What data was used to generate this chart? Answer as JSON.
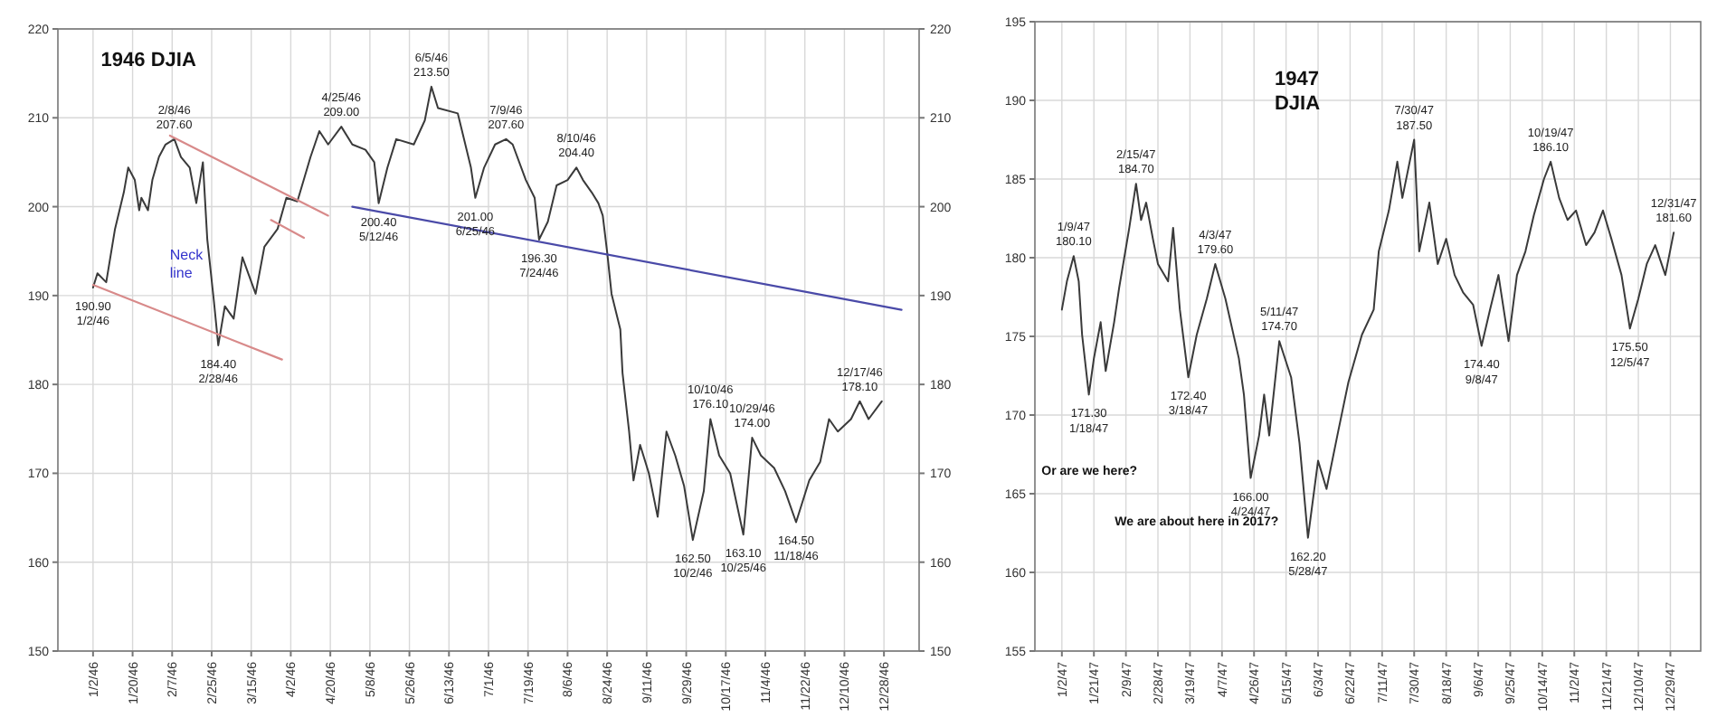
{
  "chart_data": [
    {
      "type": "line",
      "title": "1946 DJIA",
      "grid": true,
      "xlim": [
        "1945-12-17",
        "1947-01-13"
      ],
      "xticks": [
        {
          "value": "1946-01-02",
          "label": "1/2/46"
        },
        {
          "value": "1946-01-20",
          "label": "1/20/46"
        },
        {
          "value": "1946-02-07",
          "label": "2/7/46"
        },
        {
          "value": "1946-02-25",
          "label": "2/25/46"
        },
        {
          "value": "1946-03-15",
          "label": "3/15/46"
        },
        {
          "value": "1946-04-02",
          "label": "4/2/46"
        },
        {
          "value": "1946-04-20",
          "label": "4/20/46"
        },
        {
          "value": "1946-05-08",
          "label": "5/8/46"
        },
        {
          "value": "1946-05-26",
          "label": "5/26/46"
        },
        {
          "value": "1946-06-13",
          "label": "6/13/46"
        },
        {
          "value": "1946-07-01",
          "label": "7/1/46"
        },
        {
          "value": "1946-07-19",
          "label": "7/19/46"
        },
        {
          "value": "1946-08-06",
          "label": "8/6/46"
        },
        {
          "value": "1946-08-24",
          "label": "8/24/46"
        },
        {
          "value": "1946-09-11",
          "label": "9/11/46"
        },
        {
          "value": "1946-09-29",
          "label": "9/29/46"
        },
        {
          "value": "1946-10-17",
          "label": "10/17/46"
        },
        {
          "value": "1946-11-04",
          "label": "11/4/46"
        },
        {
          "value": "1946-11-22",
          "label": "11/22/46"
        },
        {
          "value": "1946-12-10",
          "label": "12/10/46"
        },
        {
          "value": "1946-12-28",
          "label": "12/28/46"
        }
      ],
      "ylim": [
        150,
        220
      ],
      "yticks": [
        150,
        160,
        170,
        180,
        190,
        200,
        210,
        220
      ],
      "y2lim": [
        150,
        220
      ],
      "y2ticks": [
        150,
        160,
        170,
        180,
        190,
        200,
        210,
        220
      ],
      "series": [
        {
          "color": "#3a3a3a",
          "x": [
            "1946-01-02",
            "1946-01-04",
            "1946-01-08",
            "1946-01-12",
            "1946-01-16",
            "1946-01-18",
            "1946-01-21",
            "1946-01-23",
            "1946-01-24",
            "1946-01-27",
            "1946-01-29",
            "1946-02-01",
            "1946-02-04",
            "1946-02-08",
            "1946-02-11",
            "1946-02-15",
            "1946-02-18",
            "1946-02-21",
            "1946-02-23",
            "1946-02-26",
            "1946-02-28",
            "1946-03-03",
            "1946-03-07",
            "1946-03-11",
            "1946-03-17",
            "1946-03-21",
            "1946-03-27",
            "1946-03-31",
            "1946-04-05",
            "1946-04-11",
            "1946-04-15",
            "1946-04-19",
            "1946-04-25",
            "1946-04-30",
            "1946-05-06",
            "1946-05-10",
            "1946-05-12",
            "1946-05-16",
            "1946-05-20",
            "1946-05-28",
            "1946-06-02",
            "1946-06-05",
            "1946-06-08",
            "1946-06-17",
            "1946-06-23",
            "1946-06-25",
            "1946-06-29",
            "1946-07-04",
            "1946-07-09",
            "1946-07-12",
            "1946-07-18",
            "1946-07-22",
            "1946-07-24",
            "1946-07-28",
            "1946-08-01",
            "1946-08-06",
            "1946-08-10",
            "1946-08-13",
            "1946-08-17",
            "1946-08-20",
            "1946-08-22",
            "1946-08-24",
            "1946-08-26",
            "1946-08-30",
            "1946-08-31",
            "1946-09-03",
            "1946-09-05",
            "1946-09-08",
            "1946-09-12",
            "1946-09-16",
            "1946-09-20",
            "1946-09-24",
            "1946-09-28",
            "1946-10-02",
            "1946-10-07",
            "1946-10-10",
            "1946-10-14",
            "1946-10-19",
            "1946-10-25",
            "1946-10-29",
            "1946-11-02",
            "1946-11-08",
            "1946-11-13",
            "1946-11-18",
            "1946-11-24",
            "1946-11-29",
            "1946-12-03",
            "1946-12-07",
            "1946-12-13",
            "1946-12-17",
            "1946-12-21",
            "1946-12-27"
          ],
          "values": [
            190.9,
            192.5,
            191.5,
            197.5,
            201.6,
            204.4,
            203,
            199.6,
            201,
            199.6,
            203,
            205.6,
            207,
            207.6,
            205.6,
            204.4,
            200.4,
            205,
            196.3,
            189.4,
            184.4,
            188.8,
            187.4,
            194.3,
            190.2,
            195.5,
            197.5,
            201,
            200.6,
            205.6,
            208.5,
            207,
            209,
            207,
            206.4,
            205,
            200.4,
            204.4,
            207.6,
            207,
            209.7,
            213.5,
            211.1,
            210.5,
            204.4,
            201,
            204.4,
            207,
            207.6,
            207,
            203,
            201,
            196.3,
            198.3,
            202.4,
            203,
            204.4,
            203,
            201.6,
            200.4,
            199,
            194.9,
            190.2,
            186.2,
            181.3,
            174.7,
            169.2,
            173.2,
            170,
            165.1,
            174.7,
            172,
            168.6,
            162.5,
            168,
            176.1,
            172,
            170,
            163.1,
            174,
            172,
            170.6,
            168,
            164.5,
            169.2,
            171.3,
            176.1,
            174.7,
            176.1,
            178.1,
            176.1,
            178.1
          ]
        },
        {
          "type": "line",
          "color": "#d88a8a",
          "x": [
            "1946-02-06",
            "1946-04-19"
          ],
          "values": [
            208,
            199
          ]
        },
        {
          "type": "line",
          "color": "#d88a8a",
          "x": [
            "1946-01-02",
            "1946-03-29"
          ],
          "values": [
            191.2,
            182.8
          ]
        },
        {
          "type": "line",
          "color": "#d88a8a",
          "x": [
            "1946-03-24",
            "1946-04-08"
          ],
          "values": [
            198.5,
            196.5
          ]
        },
        {
          "type": "line",
          "color": "#4a4aa8",
          "x": [
            "1946-04-30",
            "1947-01-05"
          ],
          "values": [
            200,
            188.4
          ]
        }
      ],
      "annotations": [
        {
          "text": "190.90\n1/2/46",
          "x": "1946-01-02",
          "y": 190.9
        },
        {
          "text": "2/8/46\n207.60",
          "x": "1946-02-08",
          "y": 207.6
        },
        {
          "text": "184.40\n2/28/46",
          "x": "1946-02-28",
          "y": 184.4
        },
        {
          "text": "4/25/46\n209.00",
          "x": "1946-04-25",
          "y": 209
        },
        {
          "text": "200.40\n5/12/46",
          "x": "1946-05-12",
          "y": 200.4
        },
        {
          "text": "6/5/46\n213.50",
          "x": "1946-06-05",
          "y": 213.5
        },
        {
          "text": "201.00\n6/25/46",
          "x": "1946-06-25",
          "y": 201
        },
        {
          "text": "7/9/46\n207.60",
          "x": "1946-07-09",
          "y": 207.6
        },
        {
          "text": "196.30\n7/24/46",
          "x": "1946-07-24",
          "y": 196.3
        },
        {
          "text": "8/10/46\n204.40",
          "x": "1946-08-10",
          "y": 204.4
        },
        {
          "text": "162.50\n10/2/46",
          "x": "1946-10-02",
          "y": 162.5
        },
        {
          "text": "10/10/46\n176.10",
          "x": "1946-10-10",
          "y": 176.1
        },
        {
          "text": "163.10\n10/25/46",
          "x": "1946-10-25",
          "y": 163.1
        },
        {
          "text": "10/29/46\n174.00",
          "x": "1946-10-29",
          "y": 174
        },
        {
          "text": "164.50\n11/18/46",
          "x": "1946-11-18",
          "y": 164.5
        },
        {
          "text": "12/17/46\n178.10",
          "x": "1946-12-17",
          "y": 178.1
        },
        "Neck\nline"
      ]
    },
    {
      "type": "line",
      "title": "1947\nDJIA",
      "grid": true,
      "xlim": [
        "1946-12-17",
        "1948-01-16"
      ],
      "xticks": [
        {
          "value": "1947-01-02",
          "label": "1/2/47"
        },
        {
          "value": "1947-01-21",
          "label": "1/21/47"
        },
        {
          "value": "1947-02-09",
          "label": "2/9/47"
        },
        {
          "value": "1947-02-28",
          "label": "2/28/47"
        },
        {
          "value": "1947-03-19",
          "label": "3/19/47"
        },
        {
          "value": "1947-04-07",
          "label": "4/7/47"
        },
        {
          "value": "1947-04-26",
          "label": "4/26/47"
        },
        {
          "value": "1947-05-15",
          "label": "5/15/47"
        },
        {
          "value": "1947-06-03",
          "label": "6/3/47"
        },
        {
          "value": "1947-06-22",
          "label": "6/22/47"
        },
        {
          "value": "1947-07-11",
          "label": "7/11/47"
        },
        {
          "value": "1947-07-30",
          "label": "7/30/47"
        },
        {
          "value": "1947-08-18",
          "label": "8/18/47"
        },
        {
          "value": "1947-09-06",
          "label": "9/6/47"
        },
        {
          "value": "1947-09-25",
          "label": "9/25/47"
        },
        {
          "value": "1947-10-14",
          "label": "10/14/47"
        },
        {
          "value": "1947-11-02",
          "label": "11/2/47"
        },
        {
          "value": "1947-11-21",
          "label": "11/21/47"
        },
        {
          "value": "1947-12-10",
          "label": "12/10/47"
        },
        {
          "value": "1947-12-29",
          "label": "12/29/47"
        }
      ],
      "ylim": [
        155,
        195
      ],
      "yticks": [
        155,
        160,
        165,
        170,
        175,
        180,
        185,
        190,
        195
      ],
      "series": [
        {
          "color": "#3a3a3a",
          "x": [
            "1947-01-02",
            "1947-01-05",
            "1947-01-09",
            "1947-01-12",
            "1947-01-14",
            "1947-01-18",
            "1947-01-21",
            "1947-01-25",
            "1947-01-28",
            "1947-02-02",
            "1947-02-05",
            "1947-02-11",
            "1947-02-15",
            "1947-02-18",
            "1947-02-21",
            "1947-02-25",
            "1947-02-28",
            "1947-03-06",
            "1947-03-09",
            "1947-03-13",
            "1947-03-18",
            "1947-03-23",
            "1947-03-29",
            "1947-04-03",
            "1947-04-09",
            "1947-04-17",
            "1947-04-20",
            "1947-04-24",
            "1947-04-29",
            "1947-05-02",
            "1947-05-05",
            "1947-05-11",
            "1947-05-18",
            "1947-05-23",
            "1947-05-28",
            "1947-06-03",
            "1947-06-08",
            "1947-06-15",
            "1947-06-21",
            "1947-06-29",
            "1947-07-06",
            "1947-07-09",
            "1947-07-15",
            "1947-07-20",
            "1947-07-23",
            "1947-07-30",
            "1947-08-02",
            "1947-08-08",
            "1947-08-13",
            "1947-08-18",
            "1947-08-23",
            "1947-08-28",
            "1947-09-03",
            "1947-09-08",
            "1947-09-13",
            "1947-09-18",
            "1947-09-24",
            "1947-09-29",
            "1947-10-04",
            "1947-10-09",
            "1947-10-15",
            "1947-10-19",
            "1947-10-24",
            "1947-10-29",
            "1947-11-03",
            "1947-11-09",
            "1947-11-14",
            "1947-11-19",
            "1947-11-24",
            "1947-11-30",
            "1947-12-05",
            "1947-12-10",
            "1947-12-15",
            "1947-12-20",
            "1947-12-26",
            "1947-12-31"
          ],
          "values": [
            176.7,
            178.5,
            180.1,
            178.5,
            175.1,
            171.3,
            173.6,
            175.9,
            172.8,
            175.9,
            178.1,
            181.9,
            184.7,
            182.4,
            183.5,
            181.2,
            179.6,
            178.5,
            181.9,
            176.7,
            172.4,
            175.1,
            177.4,
            179.6,
            177.4,
            173.6,
            171.3,
            166,
            168.7,
            171.3,
            168.7,
            174.7,
            172.4,
            168.2,
            162.2,
            167.1,
            165.3,
            169,
            172.1,
            175.1,
            176.7,
            180.4,
            183,
            186.1,
            183.8,
            187.5,
            180.4,
            183.5,
            179.6,
            181.2,
            178.9,
            177.8,
            177,
            174.4,
            176.7,
            178.9,
            174.7,
            178.9,
            180.4,
            182.7,
            185,
            186.1,
            183.8,
            182.4,
            183,
            180.8,
            181.6,
            183,
            181.2,
            178.9,
            175.5,
            177.4,
            179.6,
            180.8,
            178.9,
            181.6
          ]
        }
      ],
      "annotations": [
        {
          "text": "1/9/47\n180.10",
          "x": "1947-01-09",
          "y": 180.1
        },
        {
          "text": "171.30\n1/18/47",
          "x": "1947-01-18",
          "y": 171.3
        },
        {
          "text": "2/15/47\n184.70",
          "x": "1947-02-15",
          "y": 184.7
        },
        {
          "text": "172.40\n3/18/47",
          "x": "1947-03-18",
          "y": 172.4
        },
        {
          "text": "4/3/47\n179.60",
          "x": "1947-04-03",
          "y": 179.6
        },
        {
          "text": "166.00\n4/24/47",
          "x": "1947-04-24",
          "y": 166
        },
        {
          "text": "5/11/47\n174.70",
          "x": "1947-05-11",
          "y": 174.7
        },
        {
          "text": "162.20\n5/28/47",
          "x": "1947-05-28",
          "y": 162.2
        },
        {
          "text": "7/30/47\n187.50",
          "x": "1947-07-30",
          "y": 187.5
        },
        {
          "text": "174.40\n9/8/47",
          "x": "1947-09-08",
          "y": 174.4
        },
        {
          "text": "10/19/47\n186.10",
          "x": "1947-10-19",
          "y": 186.1
        },
        {
          "text": "175.50\n12/5/47",
          "x": "1947-12-05",
          "y": 175.5
        },
        {
          "text": "12/31/47\n181.60",
          "x": "1947-12-31",
          "y": 181.6
        },
        "Or are we here?",
        "We are about here in 2017?"
      ]
    }
  ]
}
